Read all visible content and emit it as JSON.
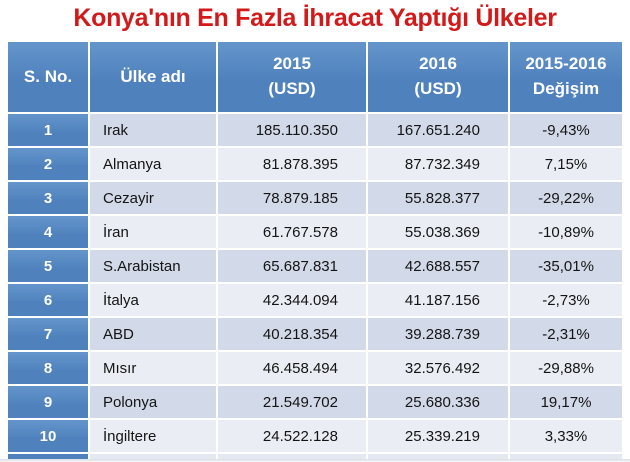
{
  "slide": {
    "title": "Konya'nın En Fazla İhracat Yaptığı Ülkeler"
  },
  "colors": {
    "title_red": "#D21A1A",
    "header_blue": "#4F81BD",
    "header_blue_light": "#6495CB",
    "band_dark": "#D2D9E8",
    "band_light": "#EAEDF4",
    "text_black": "#141414",
    "border_white": "#FFFFFF",
    "slide_bg": "#FFFFFF"
  },
  "chart_data": {
    "type": "table",
    "title": "Konya'nın En Fazla İhracat Yaptığı Ülkeler",
    "columns": [
      "S. No.",
      "Ülke adı",
      "2015 (USD)",
      "2016 (USD)",
      "2015-2016 Değişim"
    ],
    "header_lines": {
      "sno": [
        "S. No."
      ],
      "country": [
        "Ülke adı"
      ],
      "y2015": [
        "2015",
        "(USD)"
      ],
      "y2016": [
        "2016",
        "(USD)"
      ],
      "change": [
        "2015-2016",
        "Değişim"
      ]
    },
    "rows": [
      {
        "sno": "1",
        "country": "Irak",
        "v2015": "185.110.350",
        "v2016": "167.651.240",
        "change": "-9,43%"
      },
      {
        "sno": "2",
        "country": "Almanya",
        "v2015": "81.878.395",
        "v2016": "87.732.349",
        "change": "7,15%"
      },
      {
        "sno": "3",
        "country": "Cezayir",
        "v2015": "78.879.185",
        "v2016": "55.828.377",
        "change": "-29,22%"
      },
      {
        "sno": "4",
        "country": "İran",
        "v2015": "61.767.578",
        "v2016": "55.038.369",
        "change": "-10,89%"
      },
      {
        "sno": "5",
        "country": "S.Arabistan",
        "v2015": "65.687.831",
        "v2016": "42.688.557",
        "change": "-35,01%"
      },
      {
        "sno": "6",
        "country": "İtalya",
        "v2015": "42.344.094",
        "v2016": "41.187.156",
        "change": "-2,73%"
      },
      {
        "sno": "7",
        "country": "ABD",
        "v2015": "40.218.354",
        "v2016": "39.288.739",
        "change": "-2,31%"
      },
      {
        "sno": "8",
        "country": "Mısır",
        "v2015": "46.458.494",
        "v2016": "32.576.492",
        "change": "-29,88%"
      },
      {
        "sno": "9",
        "country": "Polonya",
        "v2015": "21.549.702",
        "v2016": "25.680.336",
        "change": "19,17%"
      },
      {
        "sno": "10",
        "country": "İngiltere",
        "v2015": "24.522.128",
        "v2016": "25.339.219",
        "change": "3,33%"
      }
    ]
  }
}
